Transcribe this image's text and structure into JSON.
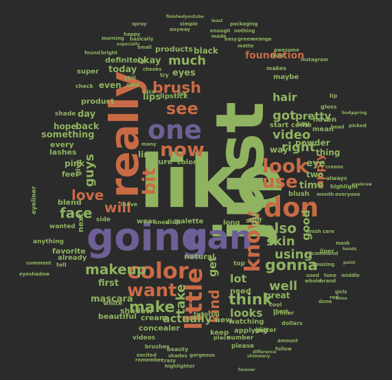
{
  "colors": {
    "background": "#2b2b2b",
    "green": "#8fb360",
    "purple": "#6e6096",
    "orange": "#c86b45",
    "teal": "#5fa98d"
  },
  "words": {
    "like": "like",
    "just": "just",
    "really": "really",
    "going": "going",
    "can": "can",
    "one": "one",
    "don": "don",
    "little": "little",
    "color": "color",
    "know": "know",
    "now": "now",
    "bit": "bit",
    "see": "see",
    "brush": "brush",
    "look": "look",
    "use": "use",
    "want": "want",
    "think": "think",
    "make": "make",
    "makeup": "makeup",
    "gonna": "gonna",
    "love": "love",
    "face": "face",
    "kind": "kind",
    "get": "get",
    "also": "also",
    "skin": "skin",
    "using": "using",
    "right": "right",
    "video": "video",
    "got": "got",
    "much": "much",
    "lot": "lot",
    "well": "well",
    "take": "take",
    "actually": "actually",
    "looks": "looks",
    "guys": "guys",
    "will": "will",
    "good": "good",
    "hair": "hair",
    "apply": "apply",
    "pretty": "pretty",
    "first": "first",
    "mascara": "mascara",
    "put": "put",
    "foundation": "foundation",
    "day": "day",
    "something": "something",
    "back": "back",
    "hope": "hope",
    "every": "every",
    "lashes": "lashes",
    "pink": "pink",
    "blend": "blend",
    "even": "even",
    "today": "today",
    "okay": "okay",
    "definitely": "definitely",
    "products": "products",
    "product": "product",
    "lips": "lips",
    "eye": "eye",
    "time": "time",
    "way": "way",
    "two": "two",
    "powder": "powder",
    "thing": "thing",
    "lipstick": "lipstick",
    "black": "black",
    "eyes": "eyes",
    "new": "new",
    "need": "need",
    "say": "say",
    "come": "come",
    "start": "start",
    "great": "great",
    "line": "line",
    "beautiful": "beautiful",
    "cream": "cream",
    "shadow": "shadow",
    "concealer": "concealer",
    "tutorial": "tutorial",
    "natural": "natural",
    "palette": "palette",
    "sure": "sure",
    "colors": "colors",
    "wear": "wear",
    "feel": "feel",
    "give": "give",
    "eyeliner": "eyeliner",
    "favorite": "favorite",
    "already": "already",
    "anything": "anything",
    "wanted": "wanted",
    "next": "next",
    "little_s": "little",
    "highlight": "highlight",
    "blush": "blush",
    "liner": "liner",
    "long": "long",
    "stuff": "stuff",
    "lip": "lip",
    "gloss": "gloss",
    "instagram": "instagram",
    "packaging": "packaging",
    "nothing": "nothing",
    "maybe": "maybe",
    "eyeshadow": "eyeshadow",
    "mask": "mask",
    "watching": "watching",
    "number": "number",
    "place": "place",
    "please": "please",
    "applying": "applying",
    "videos": "videos",
    "brushes": "brushes",
    "beauty": "beauty",
    "shades": "shades",
    "gorgeous": "gorgeous",
    "highlighter": "highlighter",
    "crazy": "crazy",
    "remember": "remember",
    "excited": "excited",
    "forever": "forever",
    "shimmery": "shimmery",
    "difference": "difference",
    "follow": "follow",
    "amount": "amount",
    "dollars": "dollars",
    "glitter": "glitter",
    "spray": "spray",
    "happy": "happy",
    "morning": "morning",
    "anyway": "anyway",
    "simple": "simple",
    "finished": "finished",
    "youtube": "youtube",
    "least": "least",
    "enough": "enough",
    "made": "made",
    "easy": "easy",
    "green": "green",
    "orange": "orange",
    "awesome": "awesome",
    "liked": "liked",
    "makes": "makes",
    "top": "top",
    "white": "white",
    "side": "side",
    "leave": "leave",
    "ones": "ones",
    "didn": "didn",
    "tell": "tell",
    "comment": "comment",
    "eyebrow": "eyebrow",
    "everyone": "everyone",
    "month": "month",
    "crease": "crease",
    "always": "always",
    "mean": "mean",
    "haven": "haven",
    "head": "head",
    "picked": "picked",
    "body": "body",
    "spring": "spring",
    "nice": "nice",
    "many": "many",
    "blue": "blue",
    "try": "try",
    "small": "small",
    "cheeks": "cheeks",
    "link": "link",
    "still": "still",
    "said": "said",
    "super": "super",
    "shade": "shade",
    "check": "check",
    "found": "found",
    "bright": "bright",
    "basically": "basically",
    "matte": "matte",
    "especially": "especially",
    "recommend": "recommend",
    "amazing": "amazing",
    "point": "point",
    "cool": "cool",
    "primer": "primer",
    "keep": "keep",
    "thank": "thank",
    "whole": "whole",
    "brand": "brand",
    "red": "red",
    "girls": "girls",
    "mine": "mine",
    "used": "used",
    "tone": "tone",
    "middle": "middle",
    "finish": "finish",
    "care": "care",
    "hands": "hands",
    "done": "done"
  }
}
